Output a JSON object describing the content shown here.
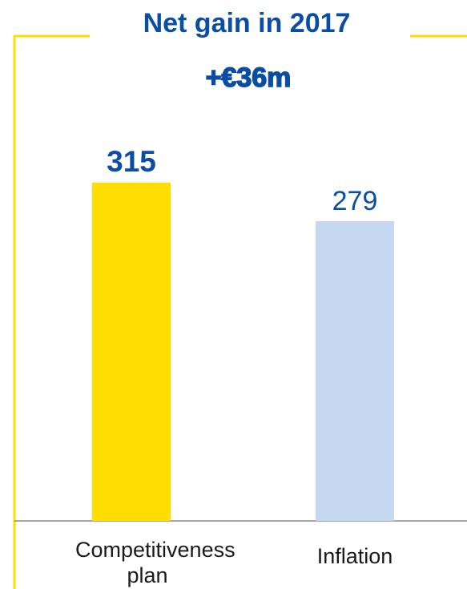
{
  "chart_data": {
    "type": "bar",
    "title": "Net gain in 2017",
    "subtitle": "+€36m",
    "categories": [
      "Competitiveness plan",
      "Inflation"
    ],
    "values": [
      315,
      279
    ],
    "colors": [
      "#FFDD00",
      "#C5D8F0"
    ],
    "ylim": [
      0,
      485
    ]
  }
}
